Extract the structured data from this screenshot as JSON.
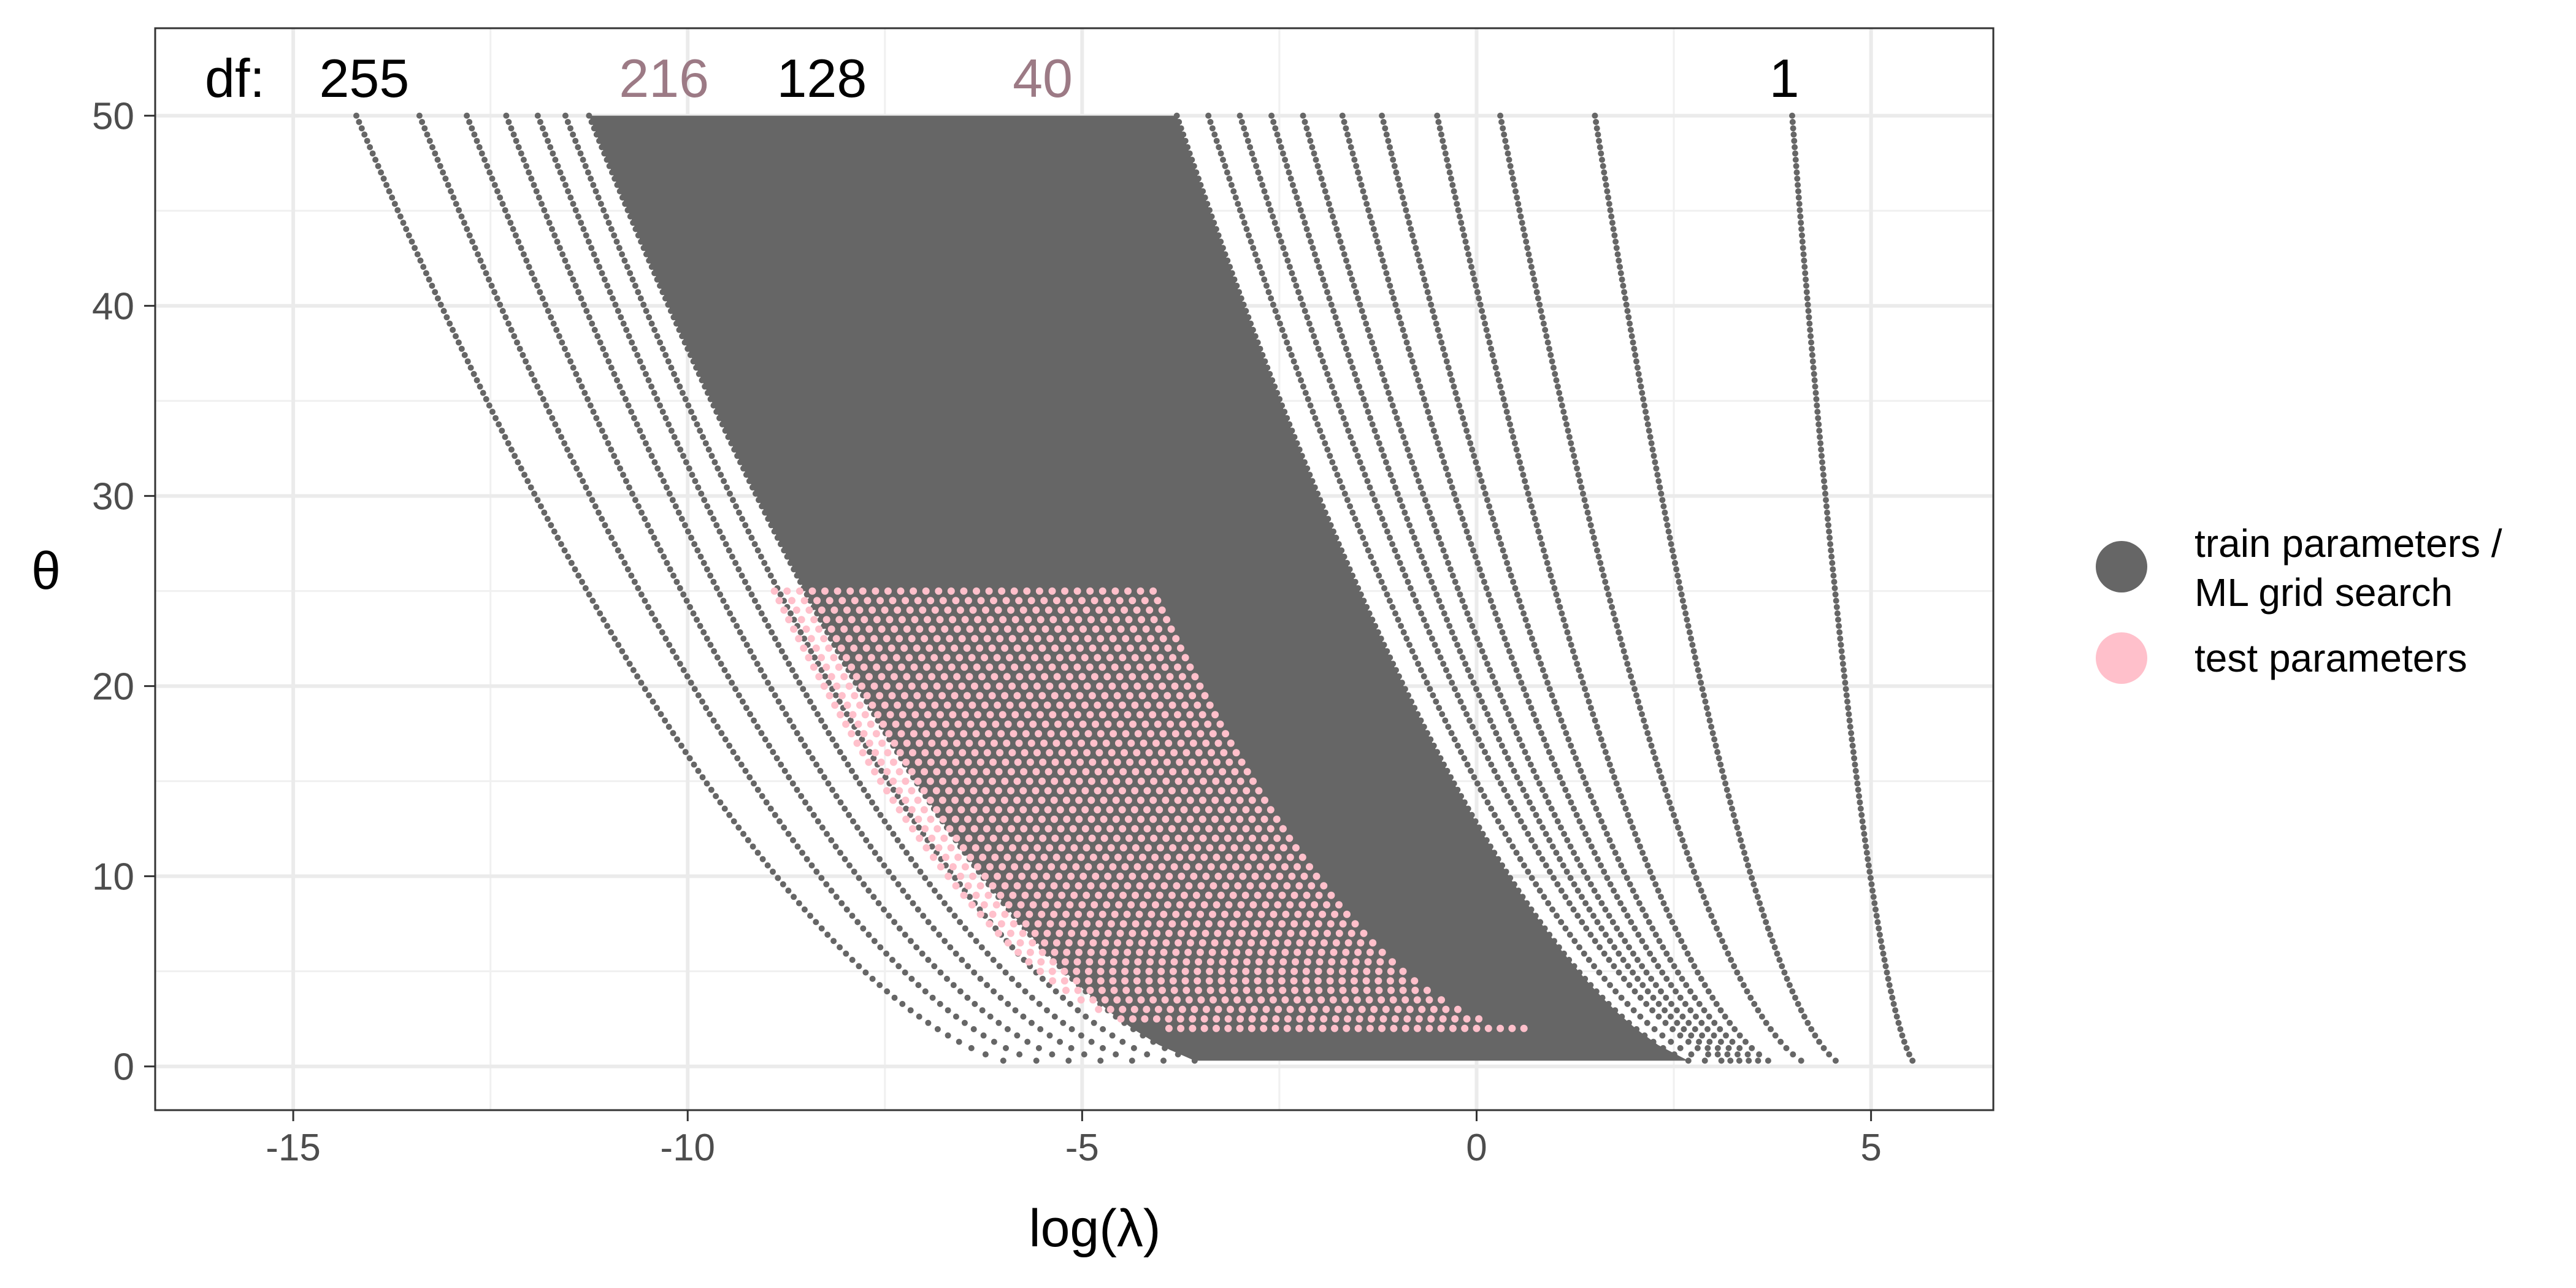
{
  "chart_data": {
    "type": "scatter",
    "xlabel": "log(λ)",
    "ylabel": "θ",
    "xlim": [
      -16.75,
      6.55
    ],
    "ylim": [
      -2.3,
      54.6
    ],
    "x_ticks": [
      -15,
      -10,
      -5,
      0,
      5
    ],
    "x_tick_labels": [
      "-15",
      "-10",
      "-5",
      "0",
      "5"
    ],
    "y_ticks": [
      0,
      10,
      20,
      30,
      40,
      50
    ],
    "y_tick_labels": [
      "0",
      "10",
      "20",
      "30",
      "40",
      "50"
    ],
    "grid": true,
    "theme": "bw",
    "legend_position": "right",
    "df_annotation_prefix": "df:",
    "df_annotations": [
      {
        "label": "255",
        "x": -14.1,
        "color": "#000000"
      },
      {
        "label": "216",
        "x": -10.3,
        "color": "#9c7a85"
      },
      {
        "label": "128",
        "x": -8.3,
        "color": "#000000"
      },
      {
        "label": "40",
        "x": -5.5,
        "color": "#9c7a85"
      },
      {
        "label": "1",
        "x": 3.9,
        "color": "#000000"
      }
    ],
    "series": [
      {
        "name": "train parameters / ML grid search",
        "legend_lines": [
          "train parameters /",
          "ML grid search"
        ],
        "color": "#666666",
        "description_points": "curves of constant degrees of freedom (df 1 to 255); theta sampled 0 to 50",
        "curve_top_x_at_theta50": [
          -14.2,
          -13.4,
          -12.8,
          -12.3,
          -11.9,
          -11.55,
          -11.25,
          -3.8,
          -3.4,
          -3.0,
          -2.6,
          -2.2,
          -1.7,
          -1.2,
          -0.5,
          0.3,
          1.5,
          4.0
        ],
        "curve_bottom_x_at_theta0": [
          -5.6,
          -5.2,
          -4.8,
          -4.4,
          -4.0,
          -3.6,
          -3.2,
          3.0,
          3.2,
          3.4,
          3.5,
          3.6,
          3.7,
          3.8,
          3.9,
          4.3,
          4.7,
          5.6
        ]
      },
      {
        "name": "test parameters",
        "legend_lines": [
          "test parameters"
        ],
        "color": "#ffc0cb",
        "theta_range": [
          2,
          25
        ],
        "x_left_at_theta25": -8.9,
        "x_right_at_theta25": -4.1,
        "x_left_at_theta2": -3.9,
        "x_right_at_theta2": 0.6
      }
    ]
  }
}
